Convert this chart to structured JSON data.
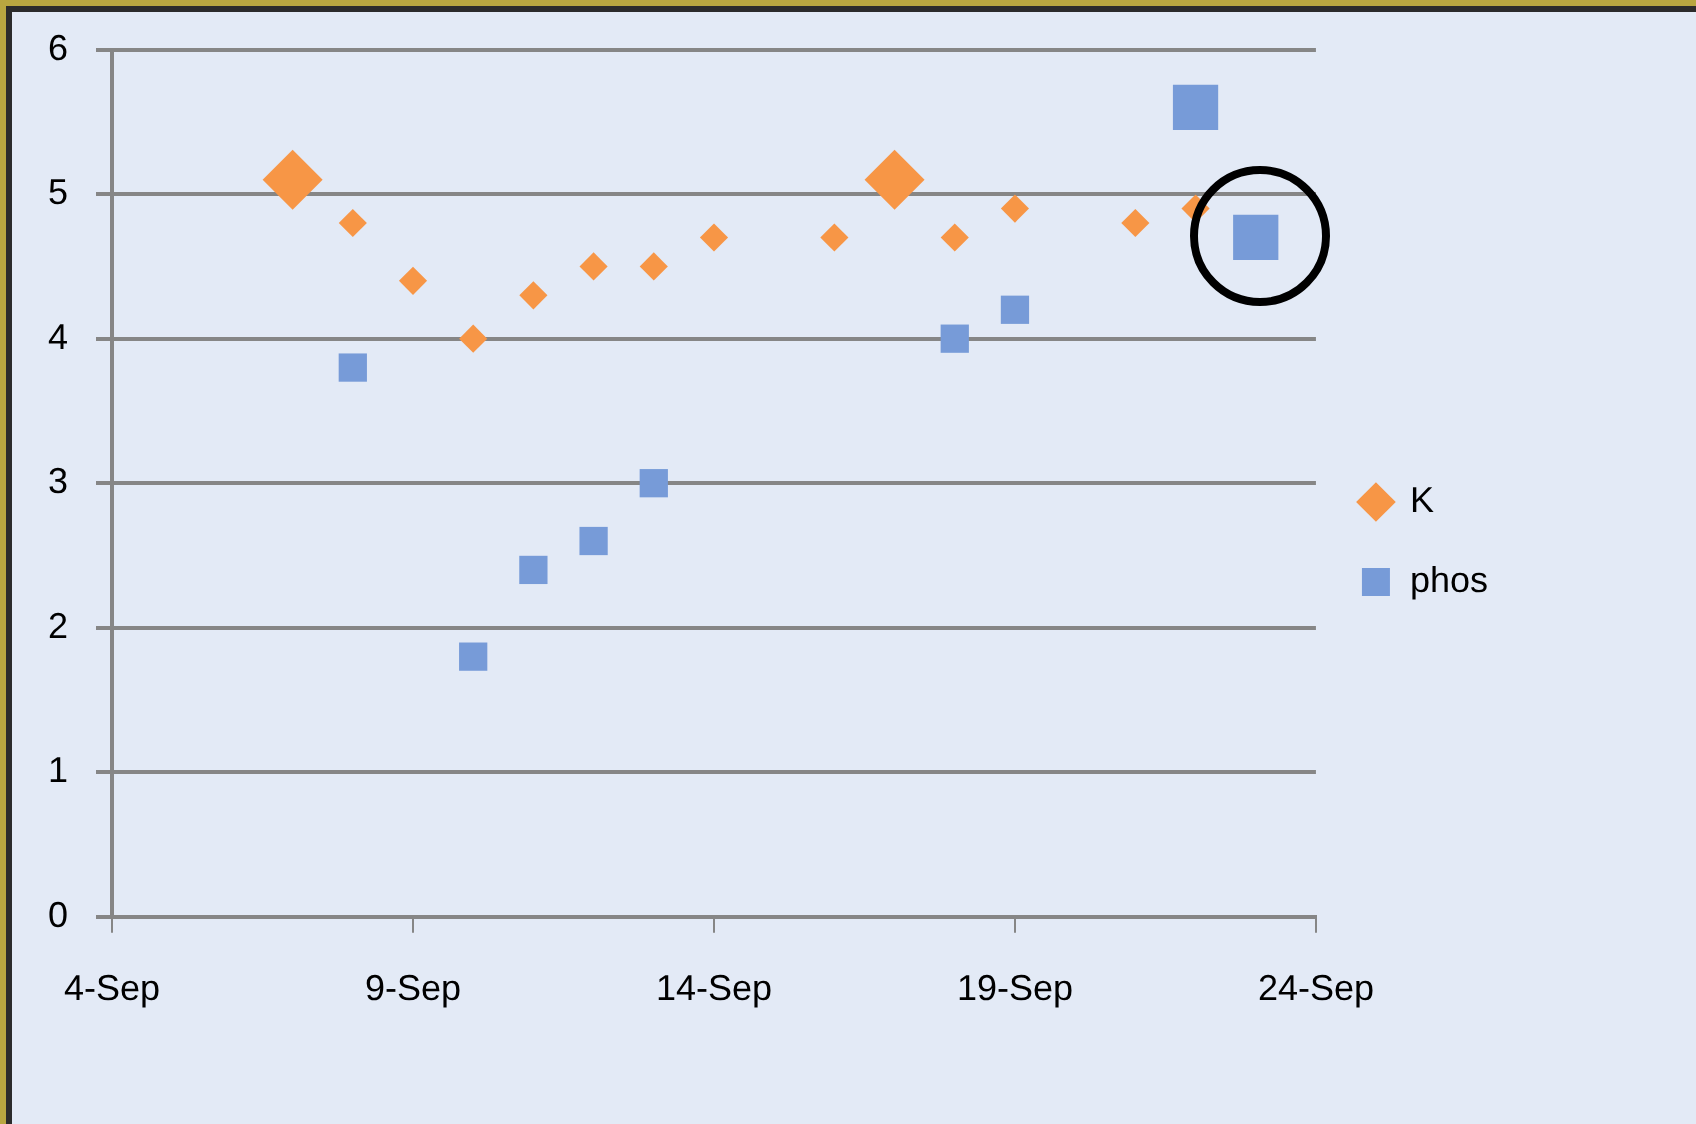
{
  "chart_data": {
    "type": "scatter",
    "xlim": [
      "--09-04",
      "--09-24"
    ],
    "xticks": [
      {
        "value": "--09-04",
        "label": "4-Sep"
      },
      {
        "value": "--09-09",
        "label": "9-Sep"
      },
      {
        "value": "--09-14",
        "label": "14-Sep"
      },
      {
        "value": "--09-19",
        "label": "19-Sep"
      },
      {
        "value": "--09-24",
        "label": "24-Sep"
      }
    ],
    "ylim": [
      0,
      6
    ],
    "yticks": [
      0,
      1,
      2,
      3,
      4,
      5,
      6
    ],
    "grid": "y",
    "legend": "right",
    "series": [
      {
        "name": "K",
        "color": "#f79646",
        "marker": "diamond",
        "x": [
          "--09-07",
          "--09-08",
          "--09-09",
          "--09-10",
          "--09-11",
          "--09-12",
          "--09-13",
          "--09-14",
          "--09-16",
          "--09-17",
          "--09-18",
          "--09-19",
          "--09-21",
          "--09-22"
        ],
        "values": [
          5.1,
          4.8,
          4.4,
          4.0,
          4.3,
          4.5,
          4.5,
          4.7,
          4.7,
          5.1,
          4.7,
          4.9,
          4.8,
          4.9
        ],
        "sizes": [
          1,
          0.22,
          0.22,
          0.22,
          0.22,
          0.22,
          0.22,
          0.22,
          0.22,
          1,
          0.22,
          0.22,
          0.22,
          0.22
        ]
      },
      {
        "name": "phos",
        "color": "#779bd8",
        "marker": "square",
        "x": [
          "--09-08",
          "--09-10",
          "--09-11",
          "--09-12",
          "--09-13",
          "--09-18",
          "--09-19",
          "--09-22",
          "--09-23"
        ],
        "values": [
          3.8,
          1.8,
          2.4,
          2.6,
          3.0,
          4.0,
          4.2,
          5.6,
          4.7
        ],
        "sizes": [
          0.39,
          0.39,
          0.39,
          0.39,
          0.39,
          0.39,
          0.39,
          1,
          1
        ]
      }
    ]
  }
}
